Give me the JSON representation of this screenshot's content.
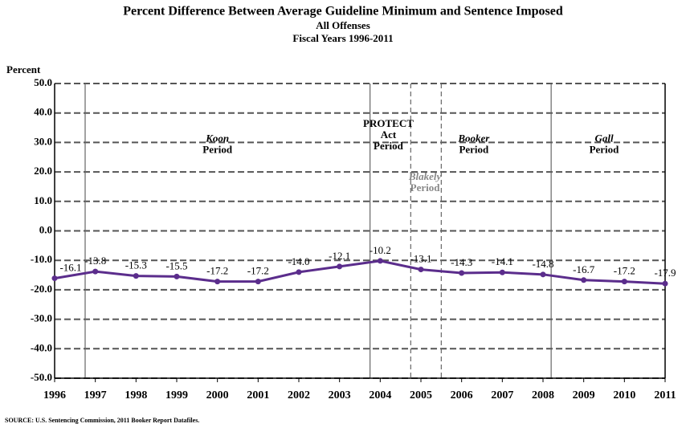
{
  "chart_data": {
    "type": "line",
    "title": "Percent Difference Between Average Guideline Minimum and Sentence Imposed",
    "subtitle": "All Offenses",
    "subtitle2": "Fiscal Years 1996-2011",
    "ylabel": "Percent",
    "source": "SOURCE:  U.S. Sentencing Commission, 2011 Booker Report Datafiles.",
    "x": [
      1996,
      1997,
      1998,
      1999,
      2000,
      2001,
      2002,
      2003,
      2004,
      2005,
      2006,
      2007,
      2008,
      2009,
      2010,
      2011
    ],
    "series": [
      {
        "name": "All Offenses",
        "color": "#5b2d8c",
        "values": [
          -16.1,
          -13.8,
          -15.3,
          -15.5,
          -17.2,
          -17.2,
          -14.0,
          -12.1,
          -10.2,
          -13.1,
          -14.3,
          -14.1,
          -14.8,
          -16.7,
          -17.2,
          -17.9
        ],
        "value_labels": [
          "-16.1",
          "-13.8",
          "-15.3",
          "-15.5",
          "-17.2",
          "-17.2",
          "-14.0",
          "-12.1",
          "-10.2",
          "-13.1",
          "-14.3",
          "-14.1",
          "-14.8",
          "-16.7",
          "-17.2",
          "-17.9"
        ]
      }
    ],
    "xlim": [
      1996,
      2011
    ],
    "xticks": [
      1996,
      1997,
      1998,
      1999,
      2000,
      2001,
      2002,
      2003,
      2004,
      2005,
      2006,
      2007,
      2008,
      2009,
      2010,
      2011
    ],
    "ylim": [
      -50,
      50
    ],
    "yticks": [
      {
        "value": -50,
        "label": "-50.0"
      },
      {
        "value": -40,
        "label": "-40.0"
      },
      {
        "value": -30,
        "label": "-30.0"
      },
      {
        "value": -20,
        "label": "-20.0"
      },
      {
        "value": -10,
        "label": "-10.0"
      },
      {
        "value": 0,
        "label": "0.0"
      },
      {
        "value": 10,
        "label": "10.0"
      },
      {
        "value": 20,
        "label": "20.0"
      },
      {
        "value": 30,
        "label": "30.0"
      },
      {
        "value": 40,
        "label": "40.0"
      },
      {
        "value": 50,
        "label": "50.0"
      }
    ],
    "grid": true,
    "period_boundaries": [
      {
        "x": 1996.75,
        "style": "solid"
      },
      {
        "x": 2003.75,
        "style": "solid"
      },
      {
        "x": 2004.75,
        "style": "dashed"
      },
      {
        "x": 2005.5,
        "style": "dashed"
      },
      {
        "x": 2008.2,
        "style": "solid"
      }
    ],
    "annotations": [
      {
        "lines": [
          "Koon",
          "Period"
        ],
        "x": 2000,
        "y": 30,
        "color": "#000000"
      },
      {
        "lines": [
          "PROTECT",
          "Act",
          "Period"
        ],
        "x": 2004.2,
        "y": 35,
        "color": "#000000"
      },
      {
        "lines": [
          "Booker",
          "Period"
        ],
        "x": 2006.3,
        "y": 30,
        "color": "#000000"
      },
      {
        "lines": [
          "Gall",
          "Period"
        ],
        "x": 2009.5,
        "y": 30,
        "color": "#000000"
      },
      {
        "lines": [
          "Blakely",
          "Period"
        ],
        "x": 2005.1,
        "y": 17,
        "color": "#888888"
      }
    ]
  }
}
